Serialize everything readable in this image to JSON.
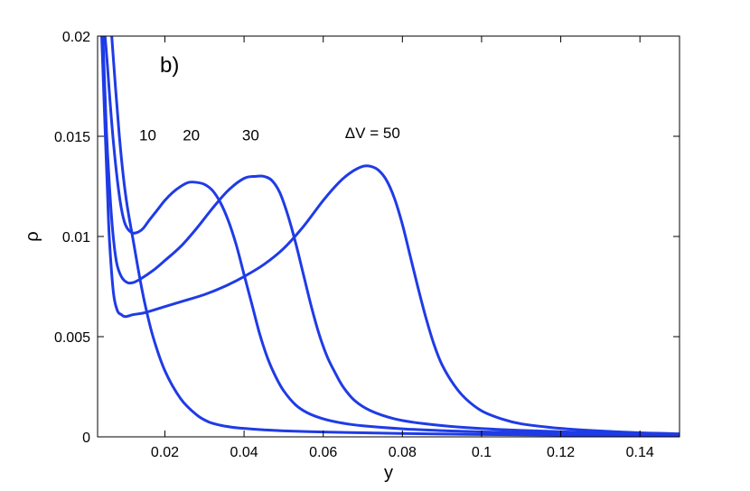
{
  "chart_data": {
    "type": "line",
    "panel_label": "b)",
    "xlabel": "y",
    "ylabel": "ρ",
    "xlim": [
      0.003,
      0.15
    ],
    "ylim": [
      0,
      0.02
    ],
    "x_ticks": [
      0.02,
      0.04,
      0.06,
      0.08,
      0.1,
      0.12,
      0.14
    ],
    "x_tick_labels": [
      "0.02",
      "0.04",
      "0.06",
      "0.08",
      "0.1",
      "0.12",
      "0.14"
    ],
    "y_ticks": [
      0,
      0.005,
      0.01,
      0.015,
      0.02
    ],
    "y_tick_labels": [
      "0",
      "0.005",
      "0.01",
      "0.015",
      "0.02"
    ],
    "grid": false,
    "line_color": "#1f3be6",
    "annotations": [
      {
        "text": "10",
        "x": 0.0135,
        "y": 0.0148
      },
      {
        "text": "20",
        "x": 0.0245,
        "y": 0.0148
      },
      {
        "text": "30",
        "x": 0.0395,
        "y": 0.0148
      },
      {
        "text": "ΔV = 50",
        "x": 0.0655,
        "y": 0.0149
      }
    ],
    "series": [
      {
        "x": [
          0.0065,
          0.0075,
          0.0085,
          0.0095,
          0.0105,
          0.012,
          0.0135,
          0.015,
          0.017,
          0.02,
          0.024,
          0.028,
          0.031,
          0.034,
          0.037,
          0.04,
          0.045,
          0.05,
          0.06,
          0.07,
          0.08,
          0.09,
          0.1,
          0.12,
          0.15
        ],
        "values": [
          0.0202,
          0.0175,
          0.015,
          0.013,
          0.0115,
          0.0098,
          0.0081,
          0.0066,
          0.005,
          0.0033,
          0.0019,
          0.0011,
          0.00075,
          0.00058,
          0.00048,
          0.00042,
          0.00035,
          0.0003,
          0.00024,
          0.0002,
          0.00017,
          0.00014,
          0.00012,
          9e-05,
          6e-05
        ]
      },
      {
        "x": [
          0.0048,
          0.0055,
          0.0062,
          0.007,
          0.008,
          0.009,
          0.01,
          0.0115,
          0.013,
          0.0145,
          0.016,
          0.018,
          0.02,
          0.022,
          0.024,
          0.026,
          0.028,
          0.03,
          0.032,
          0.034,
          0.036,
          0.038,
          0.04,
          0.042,
          0.044,
          0.046,
          0.048,
          0.05,
          0.053,
          0.056,
          0.06,
          0.065,
          0.07,
          0.08,
          0.09,
          0.1,
          0.12,
          0.15
        ],
        "values": [
          0.0202,
          0.0185,
          0.0166,
          0.0147,
          0.0128,
          0.0114,
          0.0106,
          0.0102,
          0.0102,
          0.0104,
          0.0108,
          0.0113,
          0.0118,
          0.0122,
          0.0125,
          0.0127,
          0.0127,
          0.0126,
          0.0123,
          0.0117,
          0.0108,
          0.0096,
          0.0081,
          0.0066,
          0.0051,
          0.0039,
          0.003,
          0.0023,
          0.0016,
          0.0012,
          0.0009,
          0.00068,
          0.00055,
          0.0004,
          0.00031,
          0.00025,
          0.00017,
          0.0001
        ]
      },
      {
        "x": [
          0.0043,
          0.0048,
          0.0053,
          0.006,
          0.0068,
          0.0078,
          0.009,
          0.0105,
          0.012,
          0.014,
          0.017,
          0.02,
          0.024,
          0.028,
          0.032,
          0.036,
          0.04,
          0.043,
          0.045,
          0.047,
          0.049,
          0.051,
          0.053,
          0.055,
          0.057,
          0.059,
          0.061,
          0.063,
          0.065,
          0.068,
          0.072,
          0.078,
          0.085,
          0.095,
          0.11,
          0.13,
          0.15
        ],
        "values": [
          0.0202,
          0.0175,
          0.015,
          0.0125,
          0.0103,
          0.0087,
          0.008,
          0.0077,
          0.0077,
          0.0079,
          0.0083,
          0.0088,
          0.0095,
          0.0104,
          0.0114,
          0.0123,
          0.0129,
          0.013,
          0.013,
          0.0128,
          0.0122,
          0.0111,
          0.0097,
          0.0081,
          0.0065,
          0.0051,
          0.004,
          0.0032,
          0.0025,
          0.0018,
          0.0013,
          0.0009,
          0.00067,
          0.00048,
          0.00032,
          0.0002,
          0.00013
        ]
      },
      {
        "x": [
          0.004,
          0.0045,
          0.005,
          0.0055,
          0.006,
          0.007,
          0.008,
          0.009,
          0.01,
          0.012,
          0.015,
          0.02,
          0.025,
          0.03,
          0.035,
          0.04,
          0.045,
          0.05,
          0.055,
          0.06,
          0.064,
          0.067,
          0.07,
          0.072,
          0.074,
          0.076,
          0.078,
          0.08,
          0.082,
          0.084,
          0.086,
          0.088,
          0.09,
          0.093,
          0.096,
          0.1,
          0.105,
          0.11,
          0.12,
          0.13,
          0.14,
          0.15
        ],
        "values": [
          0.0202,
          0.0175,
          0.0148,
          0.0122,
          0.0098,
          0.0072,
          0.0063,
          0.0061,
          0.006,
          0.0061,
          0.0062,
          0.0065,
          0.0068,
          0.0071,
          0.0075,
          0.008,
          0.0086,
          0.0094,
          0.0105,
          0.0118,
          0.0127,
          0.0132,
          0.0135,
          0.0135,
          0.0133,
          0.0128,
          0.0119,
          0.0106,
          0.009,
          0.0074,
          0.0059,
          0.0046,
          0.0036,
          0.0026,
          0.0019,
          0.0013,
          0.0009,
          0.00065,
          0.00042,
          0.00029,
          0.0002,
          0.00015
        ]
      }
    ]
  }
}
